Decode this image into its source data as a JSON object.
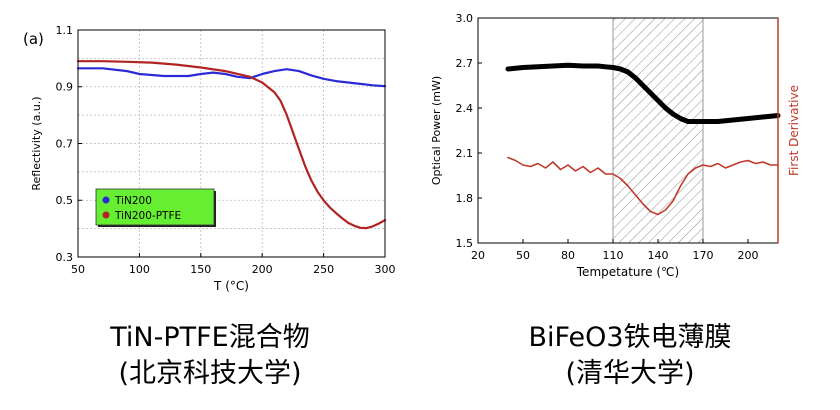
{
  "captions": {
    "left_line1": "TiN-PTFE混合物",
    "left_line2": "(北京科技大学)",
    "right_line1": "BiFeO3铁电薄膜",
    "right_line2": "(清华大学)"
  },
  "chart_data": [
    {
      "type": "line",
      "panel_label": "(a)",
      "xlabel": "T (°C)",
      "ylabel": "Reflectivity (a.u.)",
      "xlim": [
        50,
        300
      ],
      "ylim": [
        0.3,
        1.1
      ],
      "xticks": [
        "50",
        "100",
        "150",
        "200",
        "250",
        "300"
      ],
      "yticks": [
        "0.3",
        "0.5",
        "0.7",
        "0.9",
        "1.1"
      ],
      "legend": {
        "position": "lower-left",
        "background": "#66ee33"
      },
      "series": [
        {
          "name": "TiN200",
          "color": "#2b2bd6",
          "x": [
            50,
            70,
            90,
            100,
            120,
            140,
            150,
            160,
            170,
            180,
            190,
            200,
            210,
            220,
            230,
            240,
            250,
            260,
            270,
            280,
            290,
            300
          ],
          "y": [
            0.965,
            0.965,
            0.955,
            0.945,
            0.938,
            0.938,
            0.945,
            0.95,
            0.945,
            0.935,
            0.93,
            0.945,
            0.955,
            0.962,
            0.955,
            0.94,
            0.928,
            0.92,
            0.915,
            0.91,
            0.905,
            0.902
          ]
        },
        {
          "name": "TiN200-PTFE",
          "color": "#b22424",
          "x": [
            50,
            70,
            90,
            110,
            130,
            150,
            170,
            190,
            200,
            210,
            215,
            220,
            225,
            230,
            235,
            240,
            245,
            250,
            255,
            260,
            265,
            270,
            275,
            280,
            285,
            290,
            295,
            300
          ],
          "y": [
            0.99,
            0.99,
            0.988,
            0.985,
            0.978,
            0.968,
            0.955,
            0.935,
            0.915,
            0.88,
            0.85,
            0.8,
            0.74,
            0.68,
            0.62,
            0.57,
            0.53,
            0.5,
            0.475,
            0.455,
            0.437,
            0.42,
            0.41,
            0.403,
            0.402,
            0.408,
            0.418,
            0.43
          ]
        }
      ]
    },
    {
      "type": "line",
      "xlabel": "Tempetature (℃)",
      "ylabel": "Optical Power (mW)",
      "y2label": "First Derivative",
      "xlim": [
        20,
        220
      ],
      "ylim": [
        1.5,
        3.0
      ],
      "xticks": [
        "20",
        "50",
        "80",
        "110",
        "140",
        "170",
        "200"
      ],
      "yticks": [
        "1.5",
        "1.8",
        "2.1",
        "2.4",
        "2.7",
        "3.0"
      ],
      "shaded_region": [
        110,
        170
      ],
      "series": [
        {
          "name": "",
          "color": "#000000",
          "x": [
            40,
            50,
            60,
            70,
            80,
            90,
            100,
            105,
            110,
            115,
            120,
            125,
            130,
            135,
            140,
            145,
            150,
            155,
            160,
            170,
            180,
            190,
            200,
            210,
            220
          ],
          "y": [
            2.66,
            2.67,
            2.675,
            2.68,
            2.685,
            2.68,
            2.68,
            2.675,
            2.67,
            2.66,
            2.64,
            2.6,
            2.55,
            2.5,
            2.45,
            2.4,
            2.36,
            2.33,
            2.31,
            2.31,
            2.31,
            2.32,
            2.33,
            2.34,
            2.35
          ]
        },
        {
          "name": "",
          "color": "#c0392b",
          "axis": "right",
          "x": [
            40,
            45,
            50,
            55,
            60,
            65,
            70,
            75,
            80,
            85,
            90,
            95,
            100,
            105,
            110,
            115,
            120,
            125,
            130,
            135,
            140,
            145,
            150,
            155,
            160,
            165,
            170,
            175,
            180,
            185,
            190,
            195,
            200,
            205,
            210,
            215,
            220
          ],
          "y": [
            2.07,
            2.05,
            2.02,
            2.01,
            2.03,
            2.0,
            2.04,
            1.99,
            2.02,
            1.98,
            2.01,
            1.97,
            2.0,
            1.96,
            1.96,
            1.93,
            1.88,
            1.82,
            1.76,
            1.71,
            1.69,
            1.72,
            1.78,
            1.88,
            1.96,
            2.0,
            2.02,
            2.01,
            2.03,
            2.0,
            2.02,
            2.04,
            2.05,
            2.03,
            2.04,
            2.02,
            2.02
          ]
        }
      ]
    }
  ]
}
